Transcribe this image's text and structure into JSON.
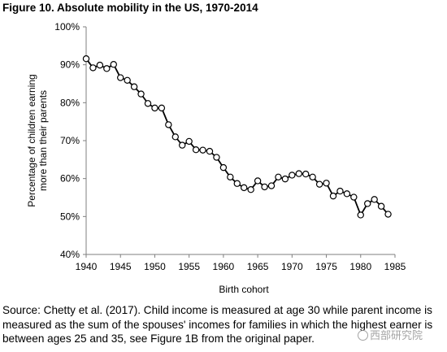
{
  "figure_title": "Figure 10. Absolute mobility in the US, 1970-2014",
  "source_text": "Source: Chetty et al. (2017). Child income is measured at age 30 while parent income is measured as the sum of the spouses' incomes for families in which the highest earner is between ages 25 and 35, see Figure 1B from the original paper.",
  "watermark_text": "西部研究院",
  "chart_data": {
    "type": "line",
    "title": "",
    "xlabel": "Birth cohort",
    "ylabel": "Percentage of children earning more than their parents",
    "ylabel_lines": [
      "Percentage of children earning",
      "more than their parents"
    ],
    "xlim": [
      1940,
      1985
    ],
    "ylim": [
      40,
      100
    ],
    "xticks": [
      1940,
      1945,
      1950,
      1955,
      1960,
      1965,
      1970,
      1975,
      1980,
      1985
    ],
    "xtick_labels": [
      "1940",
      "1945",
      "1950",
      "1955",
      "1960",
      "1965",
      "1970",
      "1975",
      "1980",
      "1985"
    ],
    "yticks": [
      40,
      50,
      60,
      70,
      80,
      90,
      100
    ],
    "ytick_labels": [
      "40%",
      "50%",
      "60%",
      "70%",
      "80%",
      "90%",
      "100%"
    ],
    "grid": false,
    "marker": "open-circle",
    "line_color": "#000000",
    "series": [
      {
        "x": [
          1940,
          1941,
          1942,
          1943,
          1944,
          1945,
          1946,
          1947,
          1948,
          1949,
          1950,
          1951,
          1952,
          1953,
          1954,
          1955,
          1956,
          1957,
          1958,
          1959,
          1960,
          1961,
          1962,
          1963,
          1964,
          1965,
          1966,
          1967,
          1968,
          1969,
          1970,
          1971,
          1972,
          1973,
          1974,
          1975,
          1976,
          1977,
          1978,
          1979,
          1980,
          1981,
          1982,
          1983,
          1984
        ],
        "y": [
          91.6,
          89.2,
          89.9,
          89.0,
          90.1,
          86.6,
          85.9,
          84.2,
          82.3,
          79.8,
          78.6,
          78.6,
          74.2,
          71.0,
          68.8,
          69.8,
          67.6,
          67.5,
          67.2,
          65.6,
          62.9,
          60.4,
          58.7,
          57.6,
          57.1,
          59.4,
          57.8,
          58.1,
          60.4,
          59.9,
          60.9,
          61.3,
          61.2,
          60.4,
          58.5,
          58.8,
          55.4,
          56.7,
          56.0,
          55.1,
          50.4,
          53.4,
          54.5,
          52.7,
          50.6
        ]
      }
    ]
  }
}
